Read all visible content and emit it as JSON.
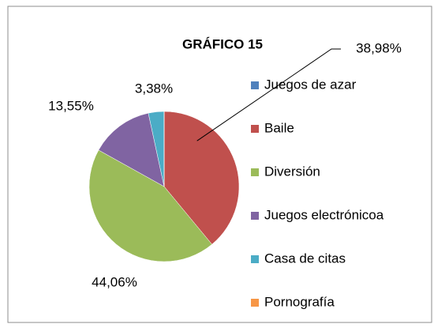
{
  "chart_data": {
    "type": "pie",
    "title": "GRÁFICO 15",
    "categories": [
      "Juegos de azar",
      "Baile",
      "Diversión",
      "Juegos electrónicoa",
      "Casa de citas",
      "Pornografía"
    ],
    "values": [
      0,
      38.98,
      44.06,
      13.55,
      3.38,
      0
    ],
    "value_labels": [
      null,
      "38,98%",
      "44,06%",
      "13,55%",
      "3,38%",
      null
    ],
    "colors": [
      "#4f81bd",
      "#c0504d",
      "#9bbb59",
      "#8064a2",
      "#4bacc6",
      "#f79646"
    ],
    "legend": "right"
  }
}
